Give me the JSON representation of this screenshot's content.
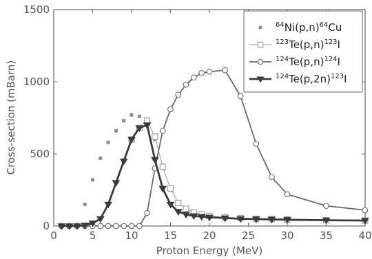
{
  "chart_data": {
    "type": "line",
    "xlabel": "Proton Energy (MeV)",
    "ylabel": "Cross-section (mBarn)",
    "xlim": [
      0,
      40
    ],
    "ylim": [
      0,
      1500
    ],
    "xticks": [
      "0",
      "5",
      "10",
      "15",
      "20",
      "25",
      "30",
      "35",
      "40"
    ],
    "yticks": [
      "0",
      "500",
      "1000",
      "1500"
    ],
    "grid": false,
    "legend_position": "top-right",
    "series": [
      {
        "name": "64Ni(p,n)64Cu",
        "legend": {
          "sup1": "64",
          "main": "Ni(p,n)",
          "sup2": "64",
          "tail": "Cu"
        },
        "marker": "filled-square",
        "line": "none",
        "color": "#8c8c8c",
        "x": [
          3,
          4,
          5,
          6,
          7,
          8,
          9,
          10,
          11,
          12,
          13,
          14
        ],
        "y": [
          10,
          150,
          320,
          470,
          580,
          660,
          730,
          770,
          760,
          720,
          600,
          400
        ]
      },
      {
        "name": "123Te(p,n)123I",
        "legend": {
          "sup1": "123",
          "main": "Te(p,n)",
          "sup2": "123",
          "tail": "I"
        },
        "marker": "open-square",
        "line": "solid-thin",
        "color": "#9a9a9a",
        "x": [
          10,
          11,
          12,
          13,
          14,
          15,
          16,
          17,
          18,
          19,
          20,
          22,
          24,
          26,
          28,
          30,
          35,
          40
        ],
        "y": [
          600,
          680,
          730,
          620,
          410,
          260,
          160,
          120,
          95,
          80,
          70,
          60,
          55,
          50,
          48,
          45,
          40,
          38
        ]
      },
      {
        "name": "124Te(p,n)124I",
        "legend": {
          "sup1": "124",
          "main": "Te(p,n)",
          "sup2": "124",
          "tail": "I"
        },
        "marker": "open-circle",
        "line": "solid",
        "color": "#6a6a6a",
        "x": [
          1,
          2,
          3,
          4,
          5,
          6,
          7,
          8,
          9,
          10,
          11,
          12,
          13,
          14,
          15,
          16,
          17,
          18,
          19,
          20,
          22,
          24,
          26,
          28,
          30,
          35,
          40
        ],
        "y": [
          0,
          0,
          0,
          0,
          0,
          0,
          0,
          0,
          0,
          0,
          0,
          90,
          400,
          660,
          810,
          910,
          980,
          1030,
          1060,
          1070,
          1080,
          900,
          570,
          340,
          220,
          140,
          110
        ]
      },
      {
        "name": "124Te(p,2n)123I",
        "legend": {
          "sup1": "124",
          "main": "Te(p,2n)",
          "sup2": "123",
          "tail": "I"
        },
        "marker": "filled-triangle-down",
        "line": "solid-thick",
        "color": "#3a3a3a",
        "x": [
          1,
          2,
          3,
          4,
          5,
          6,
          7,
          8,
          9,
          10,
          11,
          12,
          13,
          14,
          15,
          16,
          17,
          18,
          19,
          20,
          22,
          24,
          26,
          28,
          30,
          35,
          40
        ],
        "y": [
          0,
          0,
          0,
          5,
          20,
          50,
          150,
          300,
          450,
          600,
          680,
          700,
          460,
          260,
          150,
          100,
          80,
          70,
          65,
          60,
          55,
          50,
          48,
          46,
          44,
          40,
          38
        ]
      }
    ]
  }
}
